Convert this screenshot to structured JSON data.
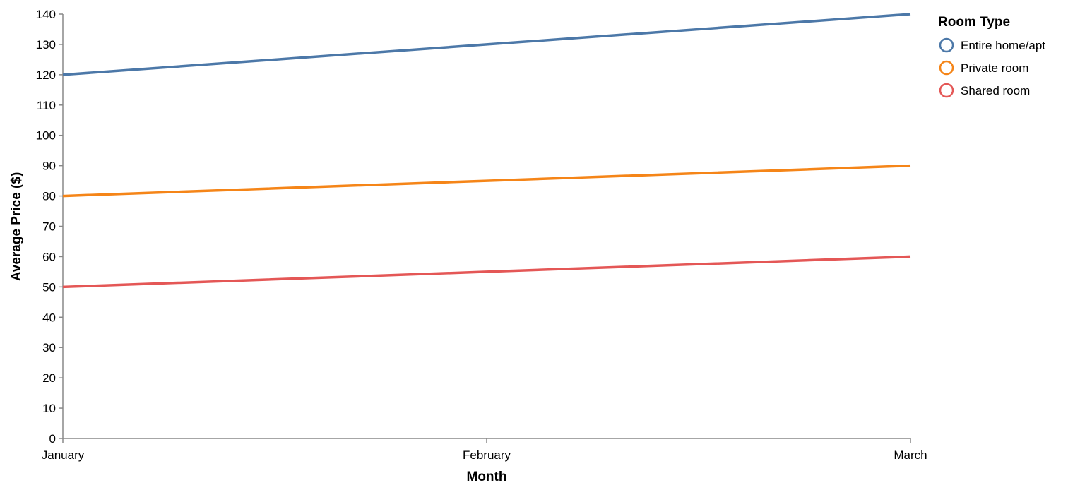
{
  "chart_data": {
    "type": "line",
    "title": "",
    "xlabel": "Month",
    "ylabel": "Average Price ($)",
    "categories": [
      "January",
      "February",
      "March"
    ],
    "ylim": [
      0,
      140
    ],
    "yticks": [
      0,
      10,
      20,
      30,
      40,
      50,
      60,
      70,
      80,
      90,
      100,
      110,
      120,
      130,
      140
    ],
    "grid": false,
    "legend": {
      "title": "Room Type",
      "placement": "top-right"
    },
    "series": [
      {
        "name": "Entire home/apt",
        "color": "#4c78a8",
        "values": [
          120,
          130,
          140
        ]
      },
      {
        "name": "Private room",
        "color": "#f58518",
        "values": [
          80,
          85,
          90
        ]
      },
      {
        "name": "Shared room",
        "color": "#e45756",
        "values": [
          50,
          55,
          60
        ]
      }
    ]
  }
}
